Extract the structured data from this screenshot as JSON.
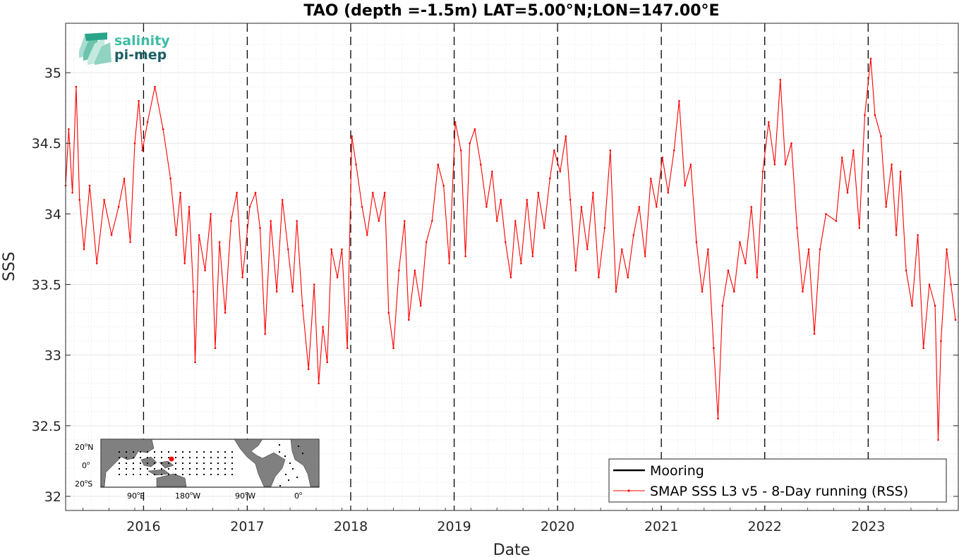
{
  "chart_data": {
    "type": "line",
    "title": "TAO (depth =-1.5m) LAT=5.00°N;LON=147.00°E",
    "xlabel": "Date",
    "ylabel": "SSS",
    "xlim": [
      "2015-04-01",
      "2023-11-15"
    ],
    "ylim": [
      31.9,
      35.35
    ],
    "yticks": [
      "32",
      "32.5",
      "33",
      "33.5",
      "34",
      "34.5",
      "35"
    ],
    "xticks": [
      "2016",
      "2017",
      "2018",
      "2019",
      "2020",
      "2021",
      "2022",
      "2023"
    ],
    "grid": true,
    "year_boundaries": [
      "2016-01-01",
      "2017-01-01",
      "2018-01-01",
      "2019-01-01",
      "2020-01-01",
      "2021-01-01",
      "2022-01-01",
      "2023-01-01"
    ],
    "legend_position": "bottom-right",
    "series": [
      {
        "name": "Mooring",
        "color": "#000000",
        "points": []
      },
      {
        "name": "SMAP SSS L3 v5 - 8-Day running (RSS)",
        "color": "#ff0000",
        "points": [
          [
            "2015-04-01",
            34.2
          ],
          [
            "2015-04-12",
            34.6
          ],
          [
            "2015-04-25",
            34.15
          ],
          [
            "2015-05-08",
            34.9
          ],
          [
            "2015-05-20",
            34.1
          ],
          [
            "2015-06-05",
            33.75
          ],
          [
            "2015-06-25",
            34.2
          ],
          [
            "2015-07-20",
            33.65
          ],
          [
            "2015-08-15",
            34.1
          ],
          [
            "2015-09-10",
            33.85
          ],
          [
            "2015-10-05",
            34.05
          ],
          [
            "2015-10-25",
            34.25
          ],
          [
            "2015-11-15",
            33.8
          ],
          [
            "2015-12-01",
            34.5
          ],
          [
            "2015-12-15",
            34.8
          ],
          [
            "2015-12-28",
            34.45
          ],
          [
            "2016-01-15",
            34.65
          ],
          [
            "2016-02-10",
            34.9
          ],
          [
            "2016-03-10",
            34.6
          ],
          [
            "2016-04-05",
            34.25
          ],
          [
            "2016-04-25",
            33.85
          ],
          [
            "2016-05-10",
            34.15
          ],
          [
            "2016-05-25",
            33.65
          ],
          [
            "2016-06-10",
            34.05
          ],
          [
            "2016-06-25",
            33.45
          ],
          [
            "2016-07-01",
            32.95
          ],
          [
            "2016-07-15",
            33.85
          ],
          [
            "2016-08-05",
            33.6
          ],
          [
            "2016-08-25",
            34.0
          ],
          [
            "2016-09-10",
            33.05
          ],
          [
            "2016-09-25",
            33.8
          ],
          [
            "2016-10-15",
            33.3
          ],
          [
            "2016-11-05",
            33.95
          ],
          [
            "2016-11-25",
            34.15
          ],
          [
            "2016-12-15",
            33.55
          ],
          [
            "2017-01-10",
            34.05
          ],
          [
            "2017-01-30",
            34.15
          ],
          [
            "2017-02-15",
            33.9
          ],
          [
            "2017-03-05",
            33.15
          ],
          [
            "2017-03-25",
            33.95
          ],
          [
            "2017-04-15",
            33.45
          ],
          [
            "2017-05-05",
            34.1
          ],
          [
            "2017-05-25",
            33.75
          ],
          [
            "2017-06-10",
            33.45
          ],
          [
            "2017-06-25",
            33.95
          ],
          [
            "2017-07-15",
            33.35
          ],
          [
            "2017-08-05",
            32.9
          ],
          [
            "2017-08-25",
            33.5
          ],
          [
            "2017-09-10",
            32.8
          ],
          [
            "2017-09-25",
            33.2
          ],
          [
            "2017-10-10",
            32.95
          ],
          [
            "2017-10-25",
            33.75
          ],
          [
            "2017-11-15",
            33.55
          ],
          [
            "2017-12-01",
            33.75
          ],
          [
            "2017-12-20",
            33.05
          ],
          [
            "2018-01-05",
            34.55
          ],
          [
            "2018-01-20",
            34.35
          ],
          [
            "2018-02-10",
            34.05
          ],
          [
            "2018-02-28",
            33.85
          ],
          [
            "2018-03-20",
            34.15
          ],
          [
            "2018-04-10",
            33.95
          ],
          [
            "2018-05-01",
            34.15
          ],
          [
            "2018-05-15",
            33.3
          ],
          [
            "2018-06-01",
            33.05
          ],
          [
            "2018-06-20",
            33.6
          ],
          [
            "2018-07-10",
            33.95
          ],
          [
            "2018-07-25",
            33.25
          ],
          [
            "2018-08-15",
            33.6
          ],
          [
            "2018-09-05",
            33.35
          ],
          [
            "2018-09-25",
            33.8
          ],
          [
            "2018-10-15",
            33.95
          ],
          [
            "2018-11-05",
            34.35
          ],
          [
            "2018-11-25",
            34.2
          ],
          [
            "2018-12-15",
            33.65
          ],
          [
            "2019-01-05",
            34.65
          ],
          [
            "2019-01-25",
            34.45
          ],
          [
            "2019-02-10",
            33.7
          ],
          [
            "2019-02-25",
            34.5
          ],
          [
            "2019-03-15",
            34.6
          ],
          [
            "2019-04-05",
            34.35
          ],
          [
            "2019-04-25",
            34.05
          ],
          [
            "2019-05-15",
            34.3
          ],
          [
            "2019-06-01",
            33.95
          ],
          [
            "2019-06-15",
            34.1
          ],
          [
            "2019-07-01",
            33.8
          ],
          [
            "2019-07-20",
            33.55
          ],
          [
            "2019-08-05",
            33.95
          ],
          [
            "2019-08-25",
            33.65
          ],
          [
            "2019-09-15",
            34.1
          ],
          [
            "2019-10-05",
            33.7
          ],
          [
            "2019-10-25",
            34.15
          ],
          [
            "2019-11-15",
            33.9
          ],
          [
            "2019-12-05",
            34.25
          ],
          [
            "2019-12-20",
            34.45
          ],
          [
            "2020-01-10",
            34.3
          ],
          [
            "2020-01-30",
            34.55
          ],
          [
            "2020-02-15",
            34.1
          ],
          [
            "2020-03-05",
            33.6
          ],
          [
            "2020-03-25",
            34.05
          ],
          [
            "2020-04-15",
            33.75
          ],
          [
            "2020-05-05",
            34.15
          ],
          [
            "2020-05-25",
            33.55
          ],
          [
            "2020-06-15",
            33.9
          ],
          [
            "2020-07-05",
            34.45
          ],
          [
            "2020-07-25",
            33.45
          ],
          [
            "2020-08-15",
            33.75
          ],
          [
            "2020-09-05",
            33.55
          ],
          [
            "2020-09-25",
            33.85
          ],
          [
            "2020-10-15",
            34.05
          ],
          [
            "2020-11-05",
            33.7
          ],
          [
            "2020-11-25",
            34.25
          ],
          [
            "2020-12-15",
            34.05
          ],
          [
            "2021-01-05",
            34.4
          ],
          [
            "2021-01-25",
            34.15
          ],
          [
            "2021-02-15",
            34.45
          ],
          [
            "2021-03-05",
            34.8
          ],
          [
            "2021-03-25",
            34.2
          ],
          [
            "2021-04-15",
            34.35
          ],
          [
            "2021-05-05",
            33.8
          ],
          [
            "2021-05-25",
            33.45
          ],
          [
            "2021-06-15",
            33.75
          ],
          [
            "2021-07-05",
            33.05
          ],
          [
            "2021-07-20",
            32.55
          ],
          [
            "2021-08-05",
            33.35
          ],
          [
            "2021-08-25",
            33.6
          ],
          [
            "2021-09-15",
            33.45
          ],
          [
            "2021-10-05",
            33.8
          ],
          [
            "2021-10-25",
            33.65
          ],
          [
            "2021-11-15",
            34.05
          ],
          [
            "2021-12-05",
            33.55
          ],
          [
            "2021-12-25",
            34.3
          ],
          [
            "2022-01-15",
            34.65
          ],
          [
            "2022-02-05",
            34.35
          ],
          [
            "2022-02-25",
            34.95
          ],
          [
            "2022-03-15",
            34.35
          ],
          [
            "2022-04-05",
            34.5
          ],
          [
            "2022-04-25",
            33.9
          ],
          [
            "2022-05-15",
            33.45
          ],
          [
            "2022-06-05",
            33.75
          ],
          [
            "2022-06-25",
            33.15
          ],
          [
            "2022-07-15",
            33.75
          ],
          [
            "2022-08-05",
            34.0
          ],
          [
            "2022-09-10",
            33.95
          ],
          [
            "2022-10-01",
            34.4
          ],
          [
            "2022-10-20",
            34.15
          ],
          [
            "2022-11-10",
            34.45
          ],
          [
            "2022-12-01",
            33.9
          ],
          [
            "2022-12-20",
            34.7
          ],
          [
            "2023-01-10",
            35.1
          ],
          [
            "2023-01-25",
            34.7
          ],
          [
            "2023-02-15",
            34.55
          ],
          [
            "2023-03-05",
            34.05
          ],
          [
            "2023-03-25",
            34.35
          ],
          [
            "2023-04-10",
            33.85
          ],
          [
            "2023-04-25",
            34.3
          ],
          [
            "2023-05-15",
            33.6
          ],
          [
            "2023-06-05",
            33.35
          ],
          [
            "2023-06-25",
            33.85
          ],
          [
            "2023-07-15",
            33.05
          ],
          [
            "2023-08-05",
            33.5
          ],
          [
            "2023-08-25",
            33.35
          ],
          [
            "2023-09-05",
            32.4
          ],
          [
            "2023-09-15",
            33.1
          ],
          [
            "2023-10-05",
            33.75
          ],
          [
            "2023-10-20",
            33.5
          ],
          [
            "2023-11-05",
            33.25
          ]
        ]
      }
    ]
  },
  "logo": {
    "line1": "salinity",
    "line2": "pi-mep",
    "color1": "#3dbca3",
    "color2": "#1a5e63"
  },
  "inset_map": {
    "lat_labels": [
      "20",
      "N",
      "0",
      "",
      "20",
      "S"
    ],
    "lon_labels": [
      "90",
      "E",
      "180",
      "W",
      "90",
      "W",
      "0",
      ""
    ],
    "degree_mark": "o",
    "marker_color": "#ff0000"
  }
}
